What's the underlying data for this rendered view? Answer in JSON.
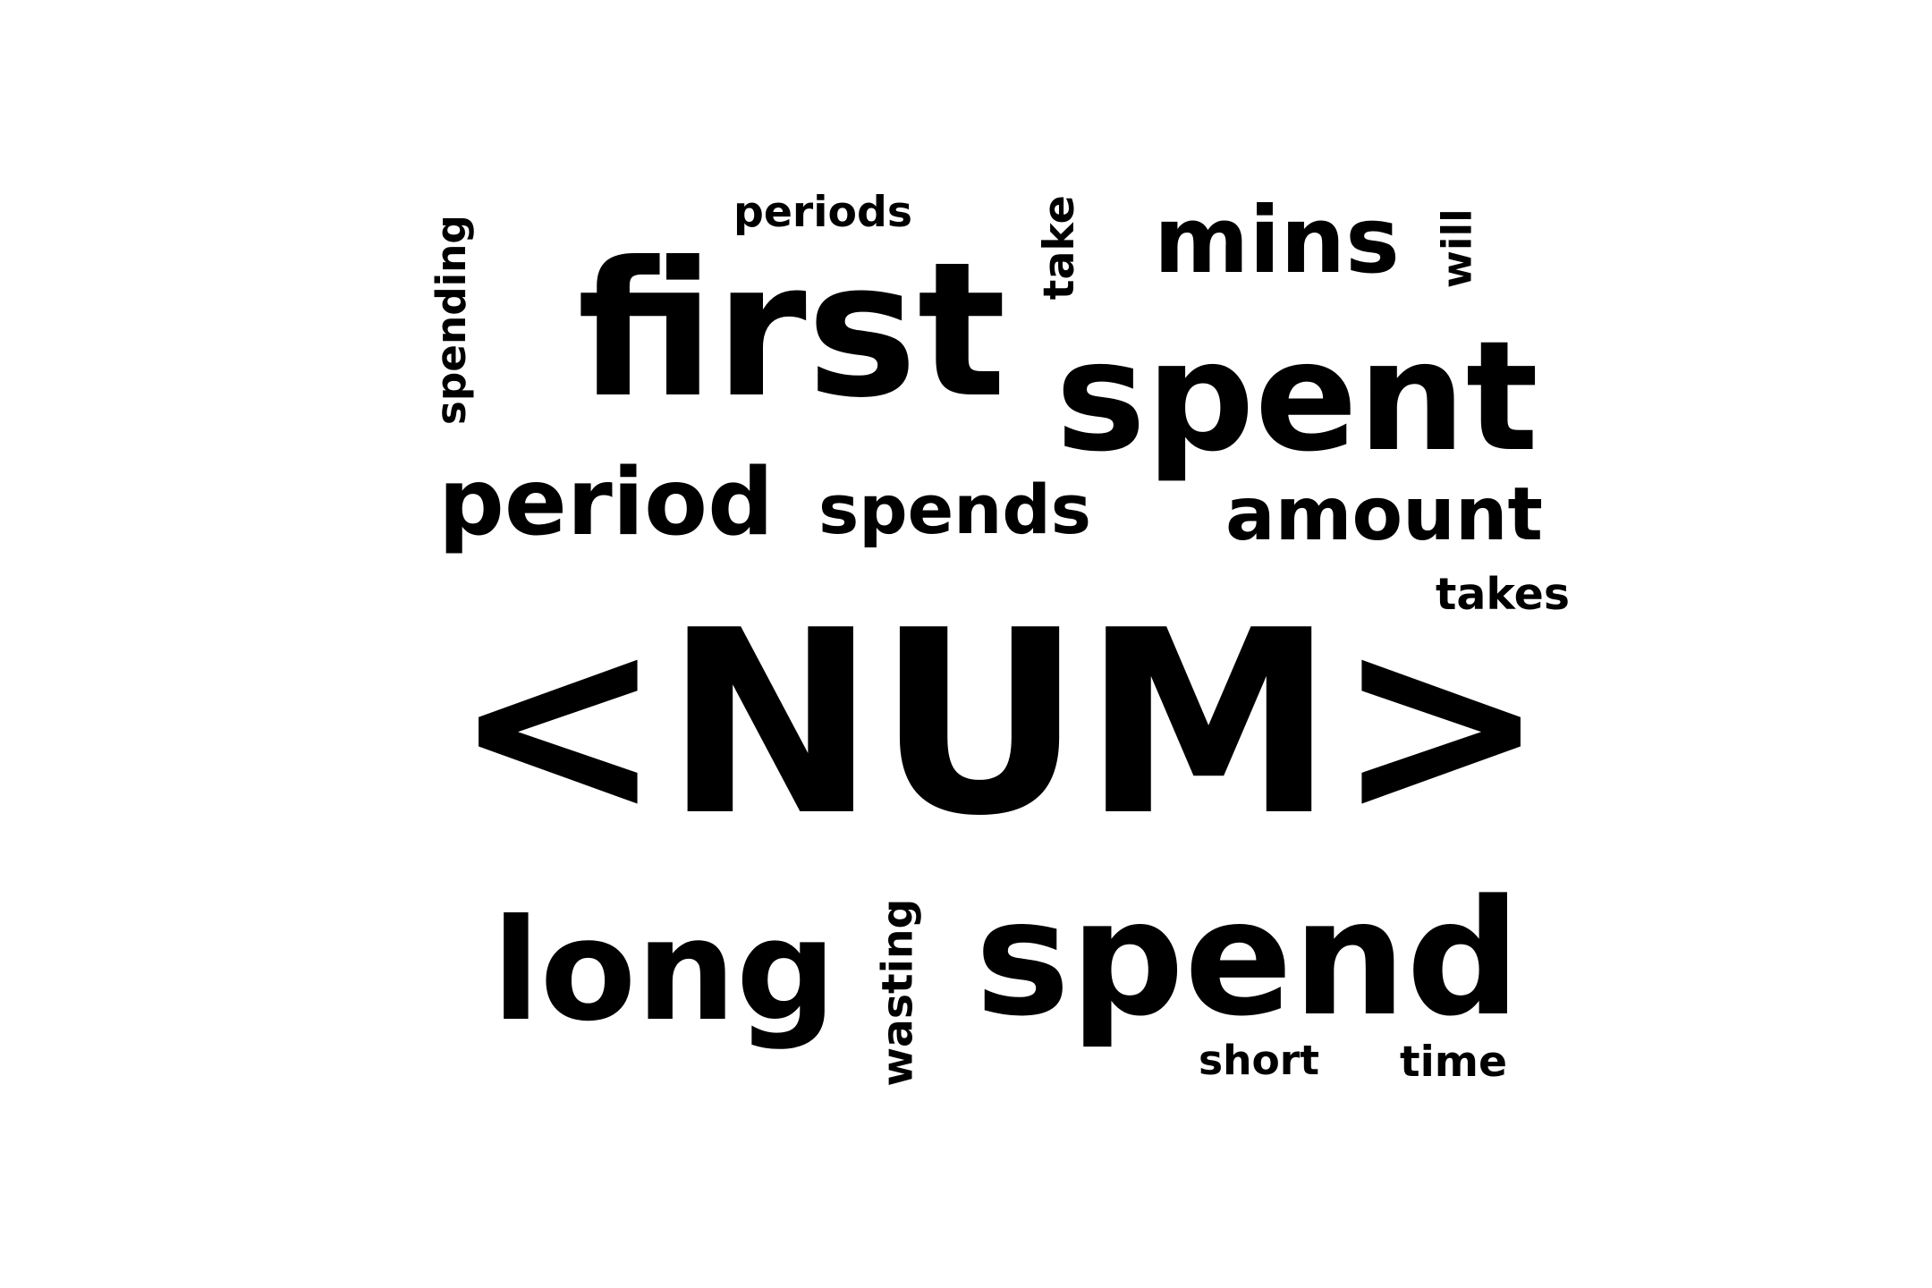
{
  "words": [
    {
      "key": "num",
      "text": "<NUM>",
      "color": "#000000"
    },
    {
      "key": "first",
      "text": "first",
      "color": "#000000"
    },
    {
      "key": "spent",
      "text": "spent",
      "color": "#000000"
    },
    {
      "key": "spend",
      "text": "spend",
      "color": "#000000"
    },
    {
      "key": "long",
      "text": "long",
      "color": "#000000"
    },
    {
      "key": "period",
      "text": "period",
      "color": "#000000"
    },
    {
      "key": "mins",
      "text": "mins",
      "color": "#000000"
    },
    {
      "key": "amount",
      "text": "amount",
      "color": "#000000"
    },
    {
      "key": "spends",
      "text": "spends",
      "color": "#000000"
    },
    {
      "key": "periods",
      "text": "periods",
      "color": "#000000"
    },
    {
      "key": "take",
      "text": "take",
      "color": "#000000"
    },
    {
      "key": "will",
      "text": "will",
      "color": "#000000"
    },
    {
      "key": "spending",
      "text": "spending",
      "color": "#000000"
    },
    {
      "key": "takes",
      "text": "takes",
      "color": "#000000"
    },
    {
      "key": "wasting",
      "text": "wasting",
      "color": "#000000"
    },
    {
      "key": "short",
      "text": "short",
      "color": "#000000"
    },
    {
      "key": "time",
      "text": "time",
      "color": "#000000"
    }
  ]
}
